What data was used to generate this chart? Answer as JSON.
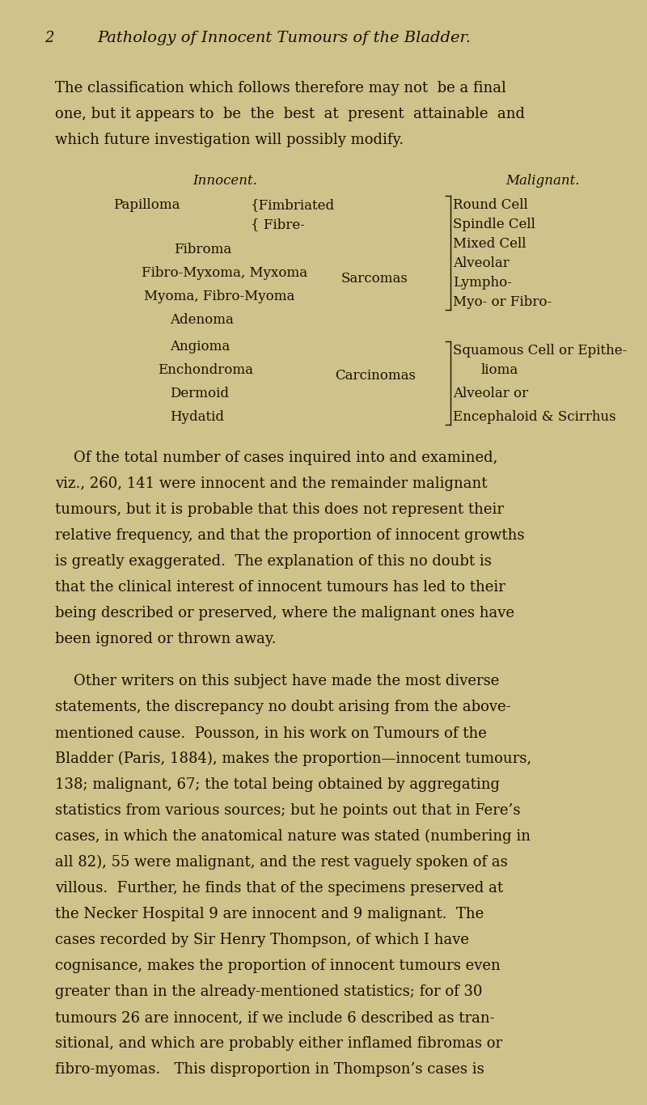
{
  "bg_color": "#cfc28a",
  "text_color": "#1a1000",
  "page_width": 8.0,
  "page_height": 13.66,
  "dpi": 100,
  "header_number": "2",
  "header_title": "Pathology of Innocent Tumours of the Bladder.",
  "para1_lines": [
    "The classification which follows therefore may not  be a final",
    "one, but it appears to  be  the  best  at  present  attainable  and",
    "which future investigation will possibly modify."
  ],
  "innocent_header": "Innocent.",
  "malignant_header": "Malignant.",
  "para2_lines": [
    "    Of the total number of cases inquired into and examined,",
    "viz., 260, 141 were innocent and the remainder malignant",
    "tumours, but it is probable that this does not represent their",
    "relative frequency, and that the proportion of innocent growths",
    "is greatly exaggerated.  The explanation of this no doubt is",
    "that the clinical interest of innocent tumours has led to their",
    "being described or preserved, where the malignant ones have",
    "been ignored or thrown away."
  ],
  "para3_lines": [
    "    Other writers on this subject have made the most diverse",
    "statements, the discrepancy no doubt arising from the above-",
    "mentioned cause.  Pousson, in his work on Tumours of the",
    "Bladder (Paris, 1884), makes the proportion—innocent tumours,",
    "138; malignant, 67; the total being obtained by aggregating",
    "statistics from various sources; but he points out that in Fere’s",
    "cases, in which the anatomical nature was stated (numbering in",
    "all 82), 55 were malignant, and the rest vaguely spoken of as",
    "villous.  Further, he finds that of the specimens preserved at",
    "the Necker Hospital 9 are innocent and 9 malignant.  The",
    "cases recorded by Sir Henry Thompson, of which I have",
    "cognisance, makes the proportion of innocent tumours even",
    "greater than in the already-mentioned statistics; for of 30",
    "tumours 26 are innocent, if we include 6 described as tran-",
    "sitional, and which are probably either inflamed fibromas or",
    "fibro-myomas.   This disproportion in Thompson’s cases is"
  ]
}
